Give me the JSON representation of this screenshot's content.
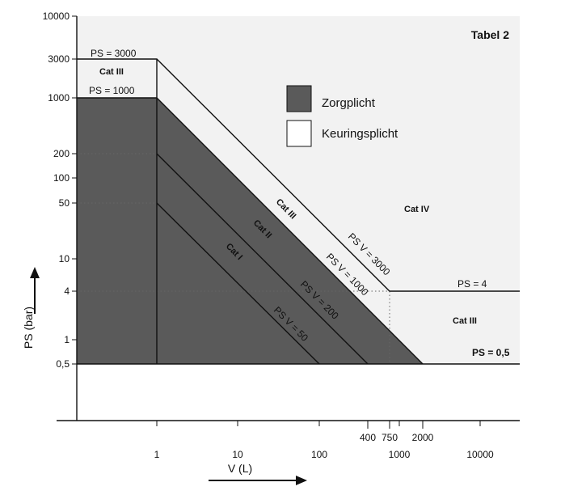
{
  "chart_data": {
    "type": "area",
    "title": "Tabel 2",
    "xlabel": "V (L)",
    "ylabel": "PS (bar)",
    "x_scale": "log",
    "y_scale": "log",
    "x_ticks": [
      "1",
      "10",
      "100",
      "1000",
      "10000"
    ],
    "x_extra_ticks": [
      "400",
      "750",
      "2000"
    ],
    "y_ticks": [
      "10000",
      "3000",
      "1000",
      "200",
      "100",
      "50",
      "10",
      "4",
      "1",
      "0,5"
    ],
    "legend": [
      {
        "label": "Zorgplicht",
        "color": "#5a5a5a"
      },
      {
        "label": "Keuringsplicht",
        "color": "#ffffff"
      }
    ],
    "boundaries": [
      {
        "name": "PS = 3000",
        "value": 3000
      },
      {
        "name": "PS = 1000",
        "value": 1000
      },
      {
        "name": "PS = 4",
        "value": 4
      },
      {
        "name": "PS = 0,5",
        "value": 0.5
      },
      {
        "name": "PS V = 3000",
        "value": 3000
      },
      {
        "name": "PS V = 1000",
        "value": 1000
      },
      {
        "name": "PS V = 200",
        "value": 200
      },
      {
        "name": "PS V = 50",
        "value": 50
      }
    ],
    "categories": [
      "Cat I",
      "Cat II",
      "Cat III",
      "Cat IV"
    ],
    "region_labels": [
      "Cat III",
      "Cat II",
      "Cat I",
      "Cat III",
      "Cat IV",
      "Cat III"
    ]
  }
}
